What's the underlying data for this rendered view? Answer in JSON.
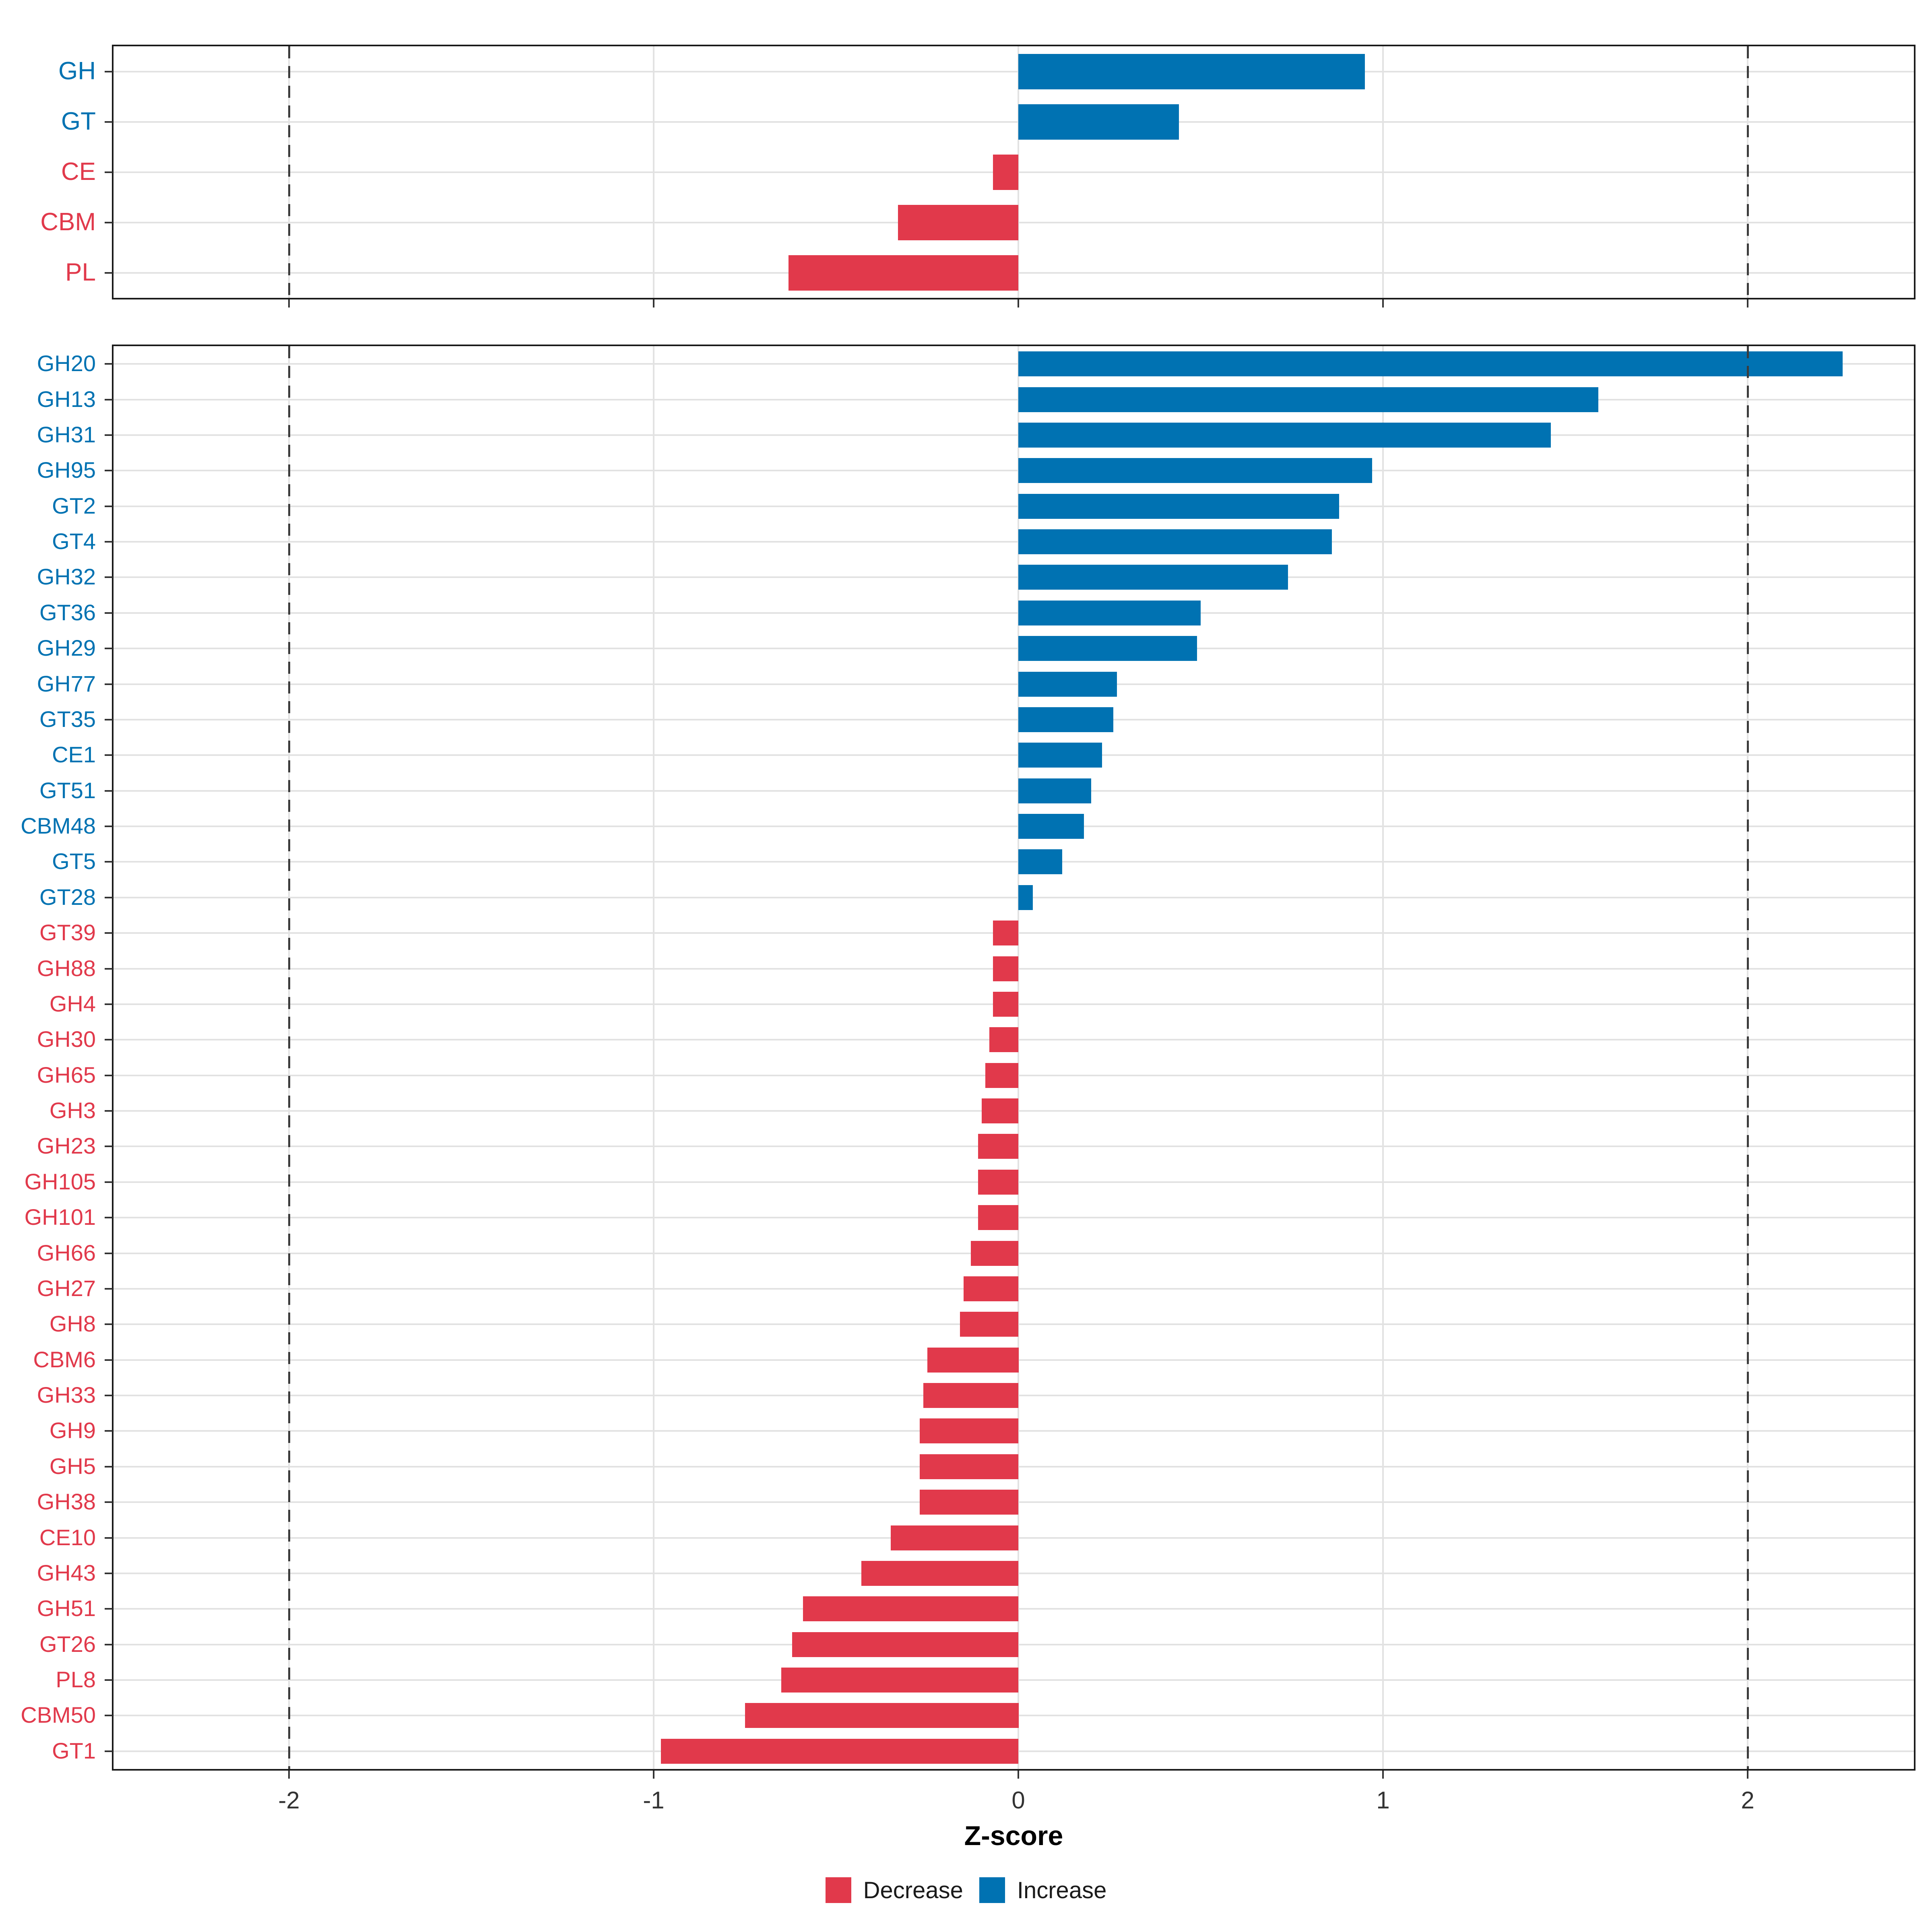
{
  "axis": {
    "title": "Z-score",
    "x_tick_labels": [
      "-2",
      "-1",
      "0",
      "1",
      "2"
    ],
    "x_tick_values": [
      -2,
      -1,
      0,
      1,
      2
    ]
  },
  "legend": {
    "items": [
      {
        "label": "Decrease",
        "color": "#E1394B"
      },
      {
        "label": "Increase",
        "color": "#0072B2"
      }
    ]
  },
  "colors": {
    "increase": "#0072B2",
    "decrease": "#E1394B",
    "grid": "#E2E2E2",
    "dashed_line": "#3B3B3B",
    "axis_text": "#333333",
    "panel_border": "#1A1A1A"
  },
  "chart_data": [
    {
      "type": "bar",
      "orientation": "horizontal",
      "panel": "summary",
      "title": "",
      "xlabel": "Z-score",
      "ylabel": "",
      "xlim": [
        -2.48,
        2.46
      ],
      "grid": true,
      "dashed_vlines": [
        -2,
        2
      ],
      "legend_position": "bottom",
      "categories": [
        "GH",
        "GT",
        "CE",
        "CBM",
        "PL"
      ],
      "values": [
        0.95,
        0.44,
        -0.07,
        -0.33,
        -0.63
      ]
    },
    {
      "type": "bar",
      "orientation": "horizontal",
      "panel": "families",
      "title": "",
      "xlabel": "Z-score",
      "ylabel": "",
      "xlim": [
        -2.48,
        2.46
      ],
      "grid": true,
      "dashed_vlines": [
        -2,
        2
      ],
      "legend_position": "bottom",
      "categories": [
        "GH20",
        "GH13",
        "GH31",
        "GH95",
        "GT2",
        "GT4",
        "GH32",
        "GT36",
        "GH29",
        "GH77",
        "GT35",
        "CE1",
        "GT51",
        "CBM48",
        "GT5",
        "GT28",
        "GT39",
        "GH88",
        "GH4",
        "GH30",
        "GH65",
        "GH3",
        "GH23",
        "GH105",
        "GH101",
        "GH66",
        "GH27",
        "GH8",
        "CBM6",
        "GH33",
        "GH9",
        "GH5",
        "GH38",
        "CE10",
        "GH43",
        "GH51",
        "GT26",
        "PL8",
        "CBM50",
        "GT1"
      ],
      "values": [
        2.26,
        1.59,
        1.46,
        0.97,
        0.88,
        0.86,
        0.74,
        0.5,
        0.49,
        0.27,
        0.26,
        0.23,
        0.2,
        0.18,
        0.12,
        0.04,
        -0.07,
        -0.07,
        -0.07,
        -0.08,
        -0.09,
        -0.1,
        -0.11,
        -0.11,
        -0.11,
        -0.13,
        -0.15,
        -0.16,
        -0.25,
        -0.26,
        -0.27,
        -0.27,
        -0.27,
        -0.35,
        -0.43,
        -0.59,
        -0.62,
        -0.65,
        -0.75,
        -0.98
      ]
    }
  ]
}
